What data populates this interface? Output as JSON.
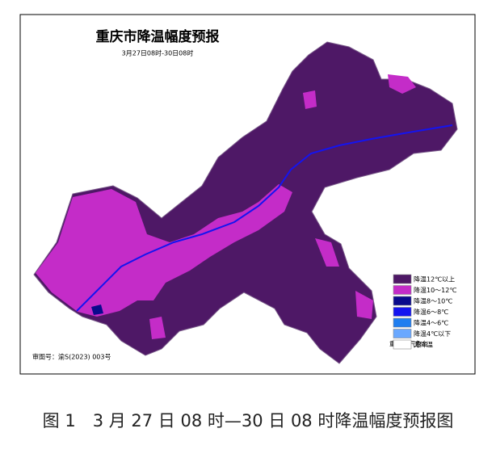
{
  "map": {
    "title": "重庆市降温幅度预报",
    "subtitle": "3月27日08时-30日08时",
    "legend": [
      {
        "label": "降温12℃以上",
        "color": "#4e1866"
      },
      {
        "label": "降温10～12℃",
        "color": "#c42cc8"
      },
      {
        "label": "降温8～10℃",
        "color": "#0a0a8c"
      },
      {
        "label": "降温6～8℃",
        "color": "#1414f0"
      },
      {
        "label": "降温4～6℃",
        "color": "#1f7ef0"
      },
      {
        "label": "降温4℃以下",
        "color": "#6aa8ff"
      },
      {
        "label": "无降温",
        "color": "#ffffff"
      }
    ],
    "approval": "审图号：渝S(2023) 003号",
    "agency": "重庆市气象台"
  },
  "caption": "图 1　3 月 27 日 08 时—30 日 08 时降温幅度预报图"
}
